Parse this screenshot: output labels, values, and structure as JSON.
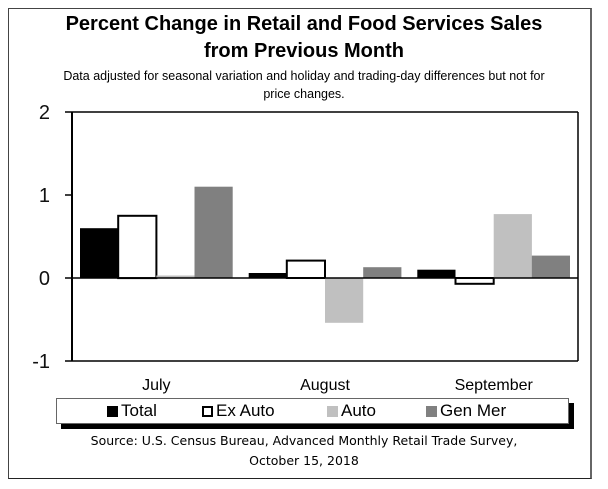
{
  "chart_data": {
    "type": "bar",
    "title": "Percent Change in Retail and Food Services Sales from Previous Month",
    "title_lines": [
      "Percent Change in Retail and Food Services Sales",
      "from Previous Month"
    ],
    "subtitle_lines": [
      "Data adjusted for seasonal variation and holiday and trading-day differences but not for",
      "price changes."
    ],
    "categories": [
      "July",
      "August",
      "September"
    ],
    "series": [
      {
        "name": "Total",
        "color": "#000000",
        "outline": false,
        "values": [
          0.6,
          0.06,
          0.1
        ]
      },
      {
        "name": "Ex Auto",
        "color": "#ffffff",
        "outline": true,
        "values": [
          0.75,
          0.21,
          -0.07
        ]
      },
      {
        "name": "Auto",
        "color": "#c0c0c0",
        "outline": false,
        "values": [
          0.03,
          -0.54,
          0.77
        ]
      },
      {
        "name": "Gen Mer",
        "color": "#808080",
        "outline": false,
        "values": [
          1.1,
          0.13,
          0.27
        ]
      }
    ],
    "xlabel": "",
    "ylabel": "",
    "ylim": [
      -1,
      2
    ],
    "yticks": [
      2,
      1,
      0,
      -1
    ],
    "ytick_labels": [
      "2",
      "1",
      "0",
      "-1"
    ],
    "grid": false,
    "legend": {
      "position": "bottom",
      "entries": [
        "Total",
        "Ex Auto",
        "Auto",
        "Gen Mer"
      ]
    },
    "source_lines": [
      "Source: U.S. Census Bureau, Advanced Monthly Retail Trade Survey,",
      "October 15, 2018"
    ]
  }
}
